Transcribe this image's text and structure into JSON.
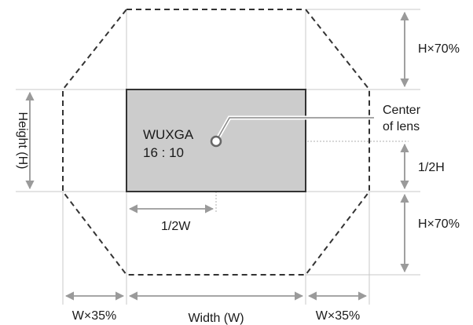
{
  "diagram": {
    "image_label": "WUXGA",
    "aspect_label": "16 : 10",
    "center_label_line1": "Center",
    "center_label_line2": "of lens",
    "height_label": "Height (H)",
    "half_width_label": "1/2W",
    "half_height_label": "1/2H",
    "top_shift_label": "H×70%",
    "bottom_shift_label": "H×70%",
    "left_shift_label": "W×35%",
    "right_shift_label": "W×35%",
    "width_label": "Width (W)"
  },
  "colors": {
    "image_fill": "#cccccc",
    "outline": "#333333"
  }
}
